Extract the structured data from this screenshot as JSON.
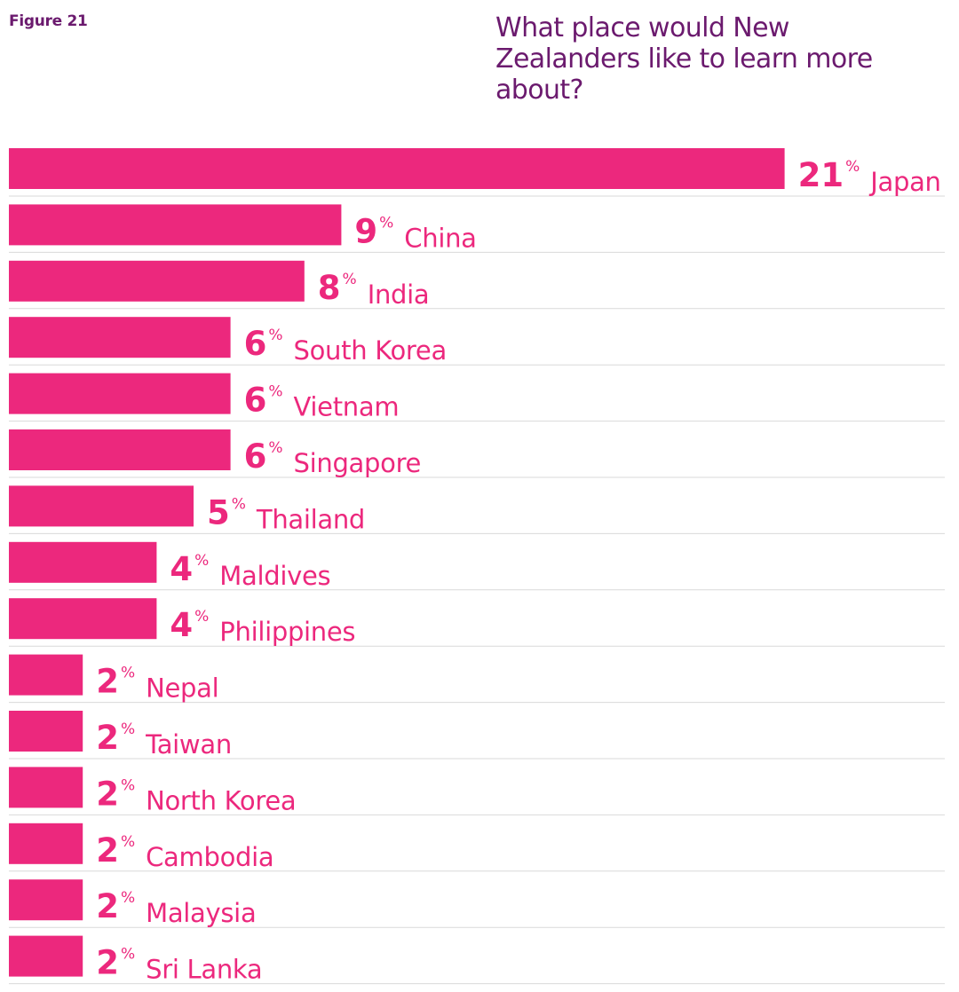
{
  "figure_label": "Figure 21",
  "chart_data": {
    "type": "bar",
    "orientation": "horizontal",
    "title": "What place would New Zealanders like to learn more about?",
    "categories": [
      "Japan",
      "China",
      "India",
      "South Korea",
      "Vietnam",
      "Singapore",
      "Thailand",
      "Maldives",
      "Philippines",
      "Nepal",
      "Taiwan",
      "North Korea",
      "Cambodia",
      "Malaysia",
      "Sri Lanka"
    ],
    "values": [
      21,
      9,
      8,
      6,
      6,
      6,
      5,
      4,
      4,
      2,
      2,
      2,
      2,
      2,
      2
    ],
    "unit": "%",
    "xlim": [
      0,
      24
    ],
    "grid": false,
    "legend": "none",
    "colors": {
      "bar": "#ec287d",
      "title": "#6b1a6e",
      "separator": "#d9d9d9"
    }
  }
}
